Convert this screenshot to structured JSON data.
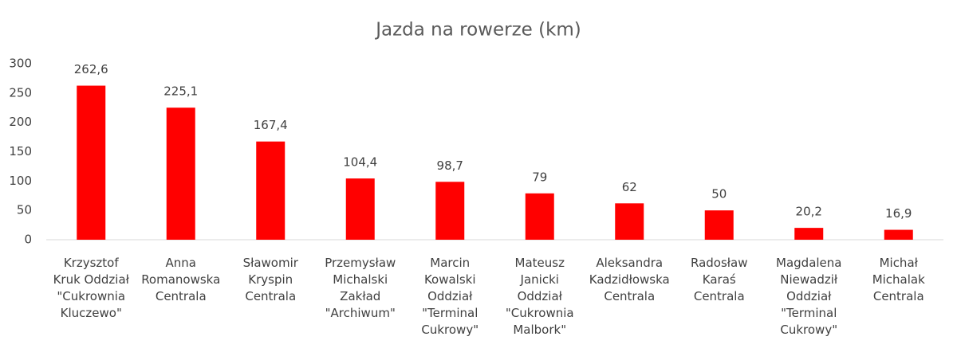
{
  "chart_data": {
    "type": "bar",
    "title": "Jazda na rowerze (km)",
    "categories": [
      [
        "Krzysztof",
        "Kruk Oddział",
        "\"Cukrownia",
        "Kluczewo\""
      ],
      [
        "Anna",
        "Romanowska",
        "Centrala"
      ],
      [
        "Sławomir",
        "Kryspin",
        "Centrala"
      ],
      [
        "Przemysław",
        "Michalski",
        "Zakład",
        "\"Archiwum\""
      ],
      [
        "Marcin",
        "Kowalski",
        "Oddział",
        "\"Terminal",
        "Cukrowy\""
      ],
      [
        "Mateusz",
        "Janicki",
        "Oddział",
        "\"Cukrownia",
        "Malbork\""
      ],
      [
        "Aleksandra",
        "Kadzidłowska",
        "Centrala"
      ],
      [
        "Radosław",
        "Karaś",
        "Centrala"
      ],
      [
        "Magdalena",
        "Niewadził",
        "Oddział",
        "\"Terminal",
        "Cukrowy\""
      ],
      [
        "Michał",
        "Michalak",
        "Centrala"
      ]
    ],
    "values": [
      262.6,
      225.1,
      167.4,
      104.4,
      98.7,
      79,
      62,
      50,
      20.2,
      16.9
    ],
    "value_labels": [
      "262,6",
      "225,1",
      "167,4",
      "104,4",
      "98,7",
      "79",
      "62",
      "50",
      "20,2",
      "16,9"
    ],
    "color": "#ff0000",
    "ylim": [
      0,
      300
    ],
    "yticks": [
      0,
      50,
      100,
      150,
      200,
      250,
      300
    ],
    "grid": false
  }
}
